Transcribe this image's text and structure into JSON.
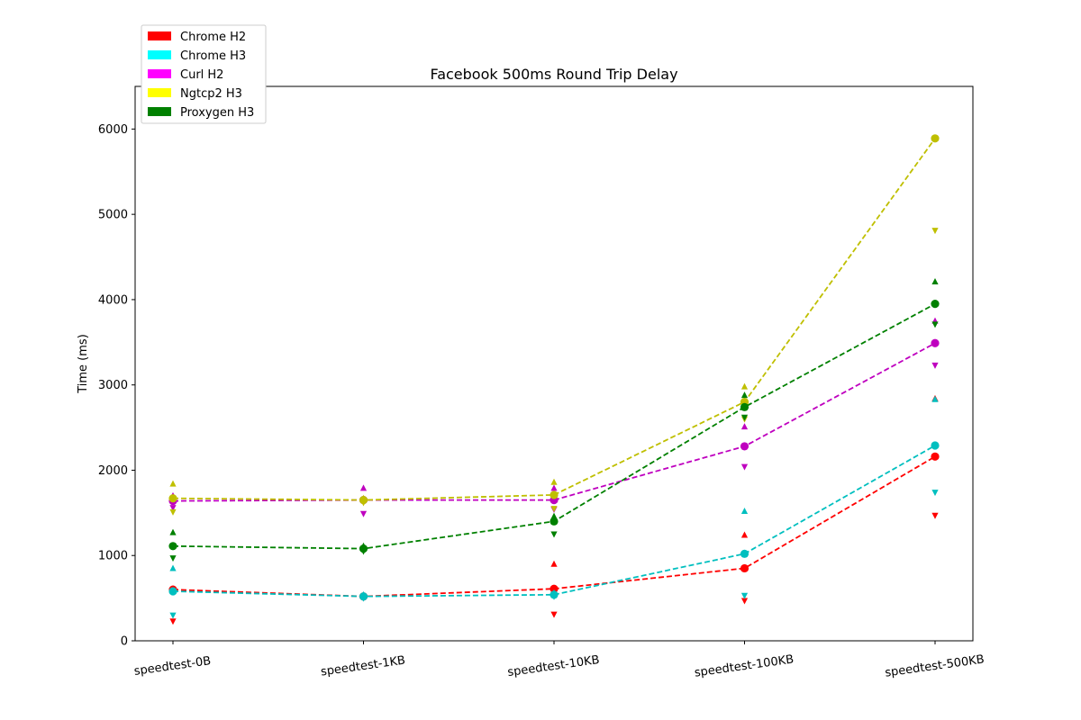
{
  "chart_data": {
    "type": "line",
    "title": "Facebook 500ms Round Trip Delay",
    "xlabel": "",
    "ylabel": "Time (ms)",
    "categories": [
      "speedtest-0B",
      "speedtest-1KB",
      "speedtest-10KB",
      "speedtest-100KB",
      "speedtest-500KB"
    ],
    "ylim": [
      0,
      6500
    ],
    "yticks": [
      0,
      1000,
      2000,
      3000,
      4000,
      5000,
      6000
    ],
    "grid": false,
    "legend_position": "top-left",
    "series": [
      {
        "name": "Chrome H2",
        "color": "#ff0000",
        "values": [
          600,
          520,
          610,
          850,
          2160
        ],
        "upper": [
          610,
          530,
          900,
          1240,
          2840
        ],
        "lower": [
          230,
          510,
          310,
          470,
          1470
        ]
      },
      {
        "name": "Chrome H3",
        "color": "#00bfbf",
        "values": [
          580,
          520,
          540,
          1020,
          2290
        ],
        "upper": [
          850,
          540,
          560,
          1520,
          2830
        ],
        "lower": [
          300,
          500,
          520,
          530,
          1740
        ]
      },
      {
        "name": "Curl H2",
        "color": "#bf00bf",
        "values": [
          1640,
          1650,
          1650,
          2280,
          3490
        ],
        "upper": [
          1700,
          1790,
          1790,
          2510,
          3750
        ],
        "lower": [
          1560,
          1490,
          1540,
          2040,
          3230
        ]
      },
      {
        "name": "Ngtcp2 H3",
        "color": "#bfbf00",
        "values": [
          1670,
          1650,
          1710,
          2800,
          5890
        ],
        "upper": [
          1840,
          1670,
          1860,
          2980,
          5890
        ],
        "lower": [
          1510,
          1620,
          1550,
          2600,
          4810
        ]
      },
      {
        "name": "Proxygen H3",
        "color": "#008000",
        "values": [
          1110,
          1080,
          1400,
          2740,
          3950
        ],
        "upper": [
          1270,
          1110,
          1460,
          2880,
          4210
        ],
        "lower": [
          970,
          1050,
          1250,
          2620,
          3710
        ]
      }
    ]
  },
  "legend_colors": {
    "Chrome H2": "#ff0000",
    "Chrome H3": "#00ffff",
    "Curl H2": "#ff00ff",
    "Ngtcp2 H3": "#ffff00",
    "Proxygen H3": "#008000"
  }
}
